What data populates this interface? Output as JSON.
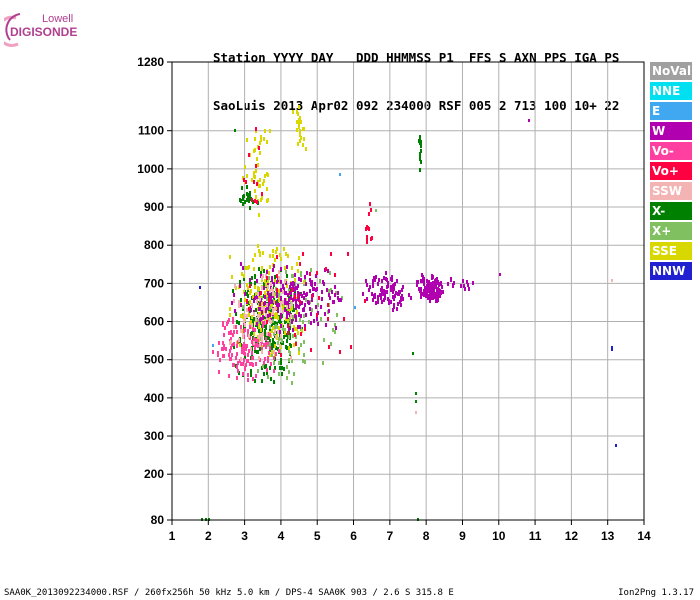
{
  "logo": {
    "line1": "Lowell",
    "line2": "DIGISONDE"
  },
  "header": {
    "line1": "Station YYYY DAY   DDD HHMMSS P1  FFS S AXN PPS IGA PS",
    "line2": "SaoLuis 2013 Apr02 092 234000 RSF 005 2 713 100 10+ 22"
  },
  "legend": [
    {
      "label": "NoVal",
      "color": "#a0a0a0"
    },
    {
      "label": "NNE",
      "color": "#00e0f0"
    },
    {
      "label": "E",
      "color": "#40a8f0"
    },
    {
      "label": "W",
      "color": "#b000b0"
    },
    {
      "label": "Vo-",
      "color": "#ff40a0"
    },
    {
      "label": "Vo+",
      "color": "#ff0040"
    },
    {
      "label": "SSW",
      "color": "#f4b4b4"
    },
    {
      "label": "X-",
      "color": "#008000"
    },
    {
      "label": "X+",
      "color": "#80c060"
    },
    {
      "label": "SSE",
      "color": "#d8d800"
    },
    {
      "label": "NNW",
      "color": "#2020d0"
    }
  ],
  "footer": {
    "left": "SAA0K_2013092234000.RSF / 260fx256h 50 kHz 5.0 km / DPS-4 SAA0K 903 / 2.6 S 315.8 E",
    "right": "Ion2Png 1.3.17"
  },
  "chart_data": {
    "type": "scatter",
    "title": "",
    "xlabel": "",
    "ylabel": "",
    "xlim": [
      1,
      14
    ],
    "ylim": [
      80,
      1280
    ],
    "xticks": [
      1,
      2,
      3,
      4,
      5,
      6,
      7,
      8,
      9,
      10,
      11,
      12,
      13,
      14
    ],
    "yticks": [
      80,
      200,
      300,
      400,
      500,
      600,
      700,
      800,
      900,
      1000,
      1100,
      1280
    ],
    "grid": true,
    "legend_position": "right",
    "clusters": [
      {
        "name": "X-",
        "color": "#008000",
        "x": [
          2.6,
          4.6
        ],
        "y": [
          430,
          760
        ],
        "count": 260
      },
      {
        "name": "X+",
        "color": "#80c060",
        "x": [
          2.6,
          5.8
        ],
        "y": [
          440,
          780
        ],
        "count": 120
      },
      {
        "name": "SSE",
        "color": "#d8d800",
        "x": [
          2.5,
          4.7
        ],
        "y": [
          500,
          820
        ],
        "count": 200
      },
      {
        "name": "W",
        "color": "#b000b0",
        "x": [
          2.5,
          5.8
        ],
        "y": [
          560,
          760
        ],
        "count": 220
      },
      {
        "name": "Vo-",
        "color": "#ff40a0",
        "x": [
          2.0,
          4.0
        ],
        "y": [
          440,
          620
        ],
        "count": 140
      },
      {
        "name": "SSW",
        "color": "#f4b4b4",
        "x": [
          2.5,
          4.5
        ],
        "y": [
          480,
          760
        ],
        "count": 80
      },
      {
        "name": "Vo+",
        "color": "#ff0040",
        "x": [
          2.6,
          6.4
        ],
        "y": [
          480,
          860
        ],
        "count": 40
      },
      {
        "name": "W",
        "color": "#b000b0",
        "x": [
          6.2,
          7.6
        ],
        "y": [
          630,
          740
        ],
        "count": 90
      },
      {
        "name": "W",
        "color": "#b000b0",
        "x": [
          7.7,
          8.5
        ],
        "y": [
          650,
          730
        ],
        "count": 130
      },
      {
        "name": "W",
        "color": "#b000b0",
        "x": [
          8.5,
          9.4
        ],
        "y": [
          685,
          720
        ],
        "count": 14
      },
      {
        "name": "SSE",
        "color": "#d8d800",
        "x": [
          2.9,
          3.8
        ],
        "y": [
          880,
          1130
        ],
        "count": 45
      },
      {
        "name": "SSE",
        "color": "#d8d800",
        "x": [
          4.3,
          4.7
        ],
        "y": [
          1020,
          1190
        ],
        "count": 22
      },
      {
        "name": "X-",
        "color": "#008000",
        "x": [
          2.8,
          3.4
        ],
        "y": [
          890,
          970
        ],
        "count": 22
      },
      {
        "name": "Vo+",
        "color": "#ff0040",
        "x": [
          2.9,
          3.6
        ],
        "y": [
          880,
          1150
        ],
        "count": 12
      },
      {
        "name": "X-",
        "color": "#008000",
        "x": [
          7.75,
          7.85
        ],
        "y": [
          990,
          1120
        ],
        "count": 14
      },
      {
        "name": "Vo+",
        "color": "#ff0040",
        "x": [
          6.3,
          6.5
        ],
        "y": [
          780,
          950
        ],
        "count": 12
      }
    ],
    "points": [
      {
        "x": 1.75,
        "y": 693,
        "color": "#2020d0"
      },
      {
        "x": 1.8,
        "y": 86,
        "color": "#008000"
      },
      {
        "x": 1.9,
        "y": 86,
        "color": "#008000"
      },
      {
        "x": 2.0,
        "y": 86,
        "color": "#008000"
      },
      {
        "x": 2.7,
        "y": 1105,
        "color": "#008000"
      },
      {
        "x": 10.8,
        "y": 1130,
        "color": "#b000b0"
      },
      {
        "x": 10.0,
        "y": 728,
        "color": "#b000b0"
      },
      {
        "x": 13.1,
        "y": 535,
        "color": "#2020d0"
      },
      {
        "x": 13.1,
        "y": 530,
        "color": "#2020d0"
      },
      {
        "x": 13.2,
        "y": 280,
        "color": "#2020d0"
      },
      {
        "x": 13.1,
        "y": 712,
        "color": "#f4b4b4"
      },
      {
        "x": 7.6,
        "y": 520,
        "color": "#008000"
      },
      {
        "x": 7.7,
        "y": 415,
        "color": "#008000"
      },
      {
        "x": 7.7,
        "y": 395,
        "color": "#008000"
      },
      {
        "x": 7.7,
        "y": 365,
        "color": "#f4b4b4"
      },
      {
        "x": 7.75,
        "y": 84,
        "color": "#008000"
      },
      {
        "x": 5.6,
        "y": 990,
        "color": "#40a8f0"
      },
      {
        "x": 6.0,
        "y": 640,
        "color": "#40a8f0"
      },
      {
        "x": 2.1,
        "y": 540,
        "color": "#40a8f0"
      },
      {
        "x": 6.6,
        "y": 895,
        "color": "#80c060"
      }
    ]
  }
}
